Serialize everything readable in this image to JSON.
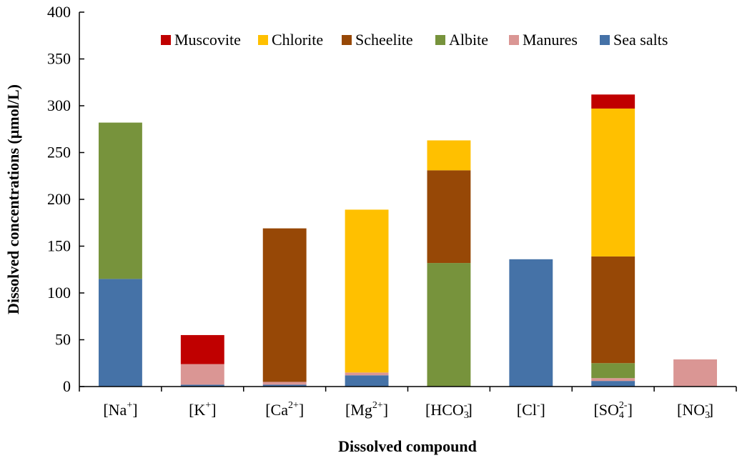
{
  "chart_data": {
    "type": "bar",
    "stacked": true,
    "title": "",
    "xlabel": "Dissolved compound",
    "ylabel": "Dissolved concentrations (µmol/L)",
    "ylim": [
      0,
      400
    ],
    "yticks": [
      0,
      50,
      100,
      150,
      200,
      250,
      300,
      350,
      400
    ],
    "categories": [
      {
        "base": "[Na",
        "sup": "+",
        "sub": "",
        "end": "]"
      },
      {
        "base": "[K",
        "sup": "+",
        "sub": "",
        "end": "]"
      },
      {
        "base": "[Ca",
        "sup": "2+",
        "sub": "",
        "end": "]"
      },
      {
        "base": "[Mg",
        "sup": "2+",
        "sub": "",
        "end": "]"
      },
      {
        "base": "[HCO",
        "sup": "-",
        "sub": "3",
        "end": "]"
      },
      {
        "base": "[Cl",
        "sup": "-",
        "sub": "",
        "end": "]"
      },
      {
        "base": "[SO",
        "sup": "2-",
        "sub": "4",
        "end": "]"
      },
      {
        "base": "[NO",
        "sup": "-",
        "sub": "3",
        "end": "]"
      }
    ],
    "series": [
      {
        "name": "Sea salts",
        "color": "#4572A7",
        "values": [
          115,
          2,
          2,
          12,
          0,
          136,
          6,
          0
        ]
      },
      {
        "name": "Manures",
        "color": "#DA9694",
        "values": [
          0,
          22,
          3,
          3,
          0,
          0,
          3,
          29
        ]
      },
      {
        "name": "Albite",
        "color": "#77933C",
        "values": [
          167,
          0,
          0,
          0,
          132,
          0,
          16,
          0
        ]
      },
      {
        "name": "Scheelite",
        "color": "#974806",
        "values": [
          0,
          0,
          164,
          0,
          99,
          0,
          114,
          0
        ]
      },
      {
        "name": "Chlorite",
        "color": "#FFC000",
        "values": [
          0,
          0,
          0,
          174,
          32,
          0,
          158,
          0
        ]
      },
      {
        "name": "Muscovite",
        "color": "#C00000",
        "values": [
          0,
          31,
          0,
          0,
          0,
          0,
          15,
          0
        ]
      }
    ],
    "legend_order": [
      "Muscovite",
      "Chlorite",
      "Scheelite",
      "Albite",
      "Manures",
      "Sea salts"
    ],
    "legend_position": "top-center",
    "grid": false
  }
}
